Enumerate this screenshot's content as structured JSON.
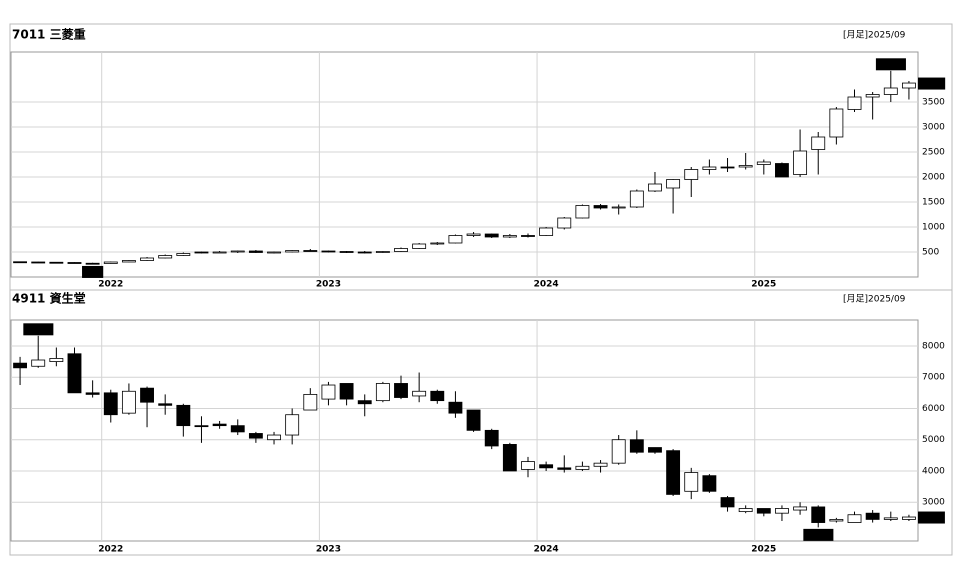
{
  "chart_data": [
    {
      "type": "candlestick",
      "title": "7011 三菱重",
      "period": "[月足]2025/09",
      "categories": [
        null,
        null,
        null,
        null,
        null,
        "2022",
        null,
        null,
        null,
        null,
        null,
        null,
        null,
        null,
        null,
        null,
        null,
        "2023",
        null,
        null,
        null,
        null,
        null,
        null,
        null,
        null,
        null,
        null,
        null,
        "2024",
        null,
        null,
        null,
        null,
        null,
        null,
        null,
        null,
        null,
        null,
        null,
        "2025",
        null,
        null,
        null,
        null,
        null,
        null,
        null,
        null
      ],
      "open": [
        305,
        300,
        295,
        290,
        275,
        270,
        300,
        330,
        380,
        430,
        500,
        490,
        500,
        520,
        490,
        500,
        530,
        520,
        510,
        500,
        490,
        510,
        570,
        660,
        680,
        830,
        860,
        800,
        830,
        830,
        980,
        1180,
        1430,
        1380,
        1400,
        1720,
        1780,
        1950,
        2150,
        2200,
        2200,
        2250,
        2270,
        2050,
        2550,
        2800,
        3350,
        3600,
        3650,
        3780
      ],
      "high": [
        310,
        305,
        300,
        295,
        285,
        310,
        340,
        400,
        450,
        490,
        510,
        520,
        530,
        540,
        510,
        540,
        560,
        530,
        520,
        520,
        520,
        590,
        680,
        700,
        850,
        900,
        870,
        860,
        870,
        1000,
        1200,
        1450,
        1460,
        1450,
        1750,
        2100,
        1960,
        2200,
        2350,
        2380,
        2480,
        2350,
        2290,
        2950,
        2900,
        3400,
        3750,
        3700,
        4124,
        3920
      ],
      "low": [
        295,
        290,
        285,
        270,
        251,
        265,
        295,
        320,
        370,
        420,
        470,
        480,
        480,
        480,
        470,
        490,
        510,
        490,
        480,
        470,
        480,
        500,
        560,
        640,
        670,
        800,
        780,
        780,
        790,
        820,
        950,
        1170,
        1350,
        1250,
        1380,
        1700,
        1270,
        1600,
        2050,
        2100,
        2150,
        2050,
        2000,
        2000,
        2050,
        2650,
        3300,
        3150,
        3500,
        3550
      ],
      "close": [
        300,
        295,
        290,
        275,
        270,
        300,
        330,
        380,
        430,
        470,
        490,
        500,
        520,
        490,
        500,
        530,
        520,
        510,
        500,
        490,
        510,
        570,
        660,
        680,
        830,
        860,
        800,
        830,
        810,
        980,
        1180,
        1430,
        1380,
        1400,
        1720,
        1860,
        1950,
        2150,
        2200,
        2180,
        2230,
        2300,
        2000,
        2520,
        2800,
        3360,
        3600,
        3650,
        3780,
        3879
      ],
      "ylim": [
        0,
        4500
      ],
      "yticks": [
        500,
        1000,
        1500,
        2000,
        2500,
        3000,
        3500
      ],
      "last": 3879,
      "annotations": [
        {
          "value": 4124,
          "label": "4,124"
        },
        {
          "value": 251
        }
      ],
      "up_color": "#ffffff",
      "down_color": "#000000",
      "grid": true
    },
    {
      "type": "candlestick",
      "title": "4911 資生堂",
      "period": "[月足]2025/09",
      "categories": [
        null,
        null,
        null,
        null,
        null,
        "2022",
        null,
        null,
        null,
        null,
        null,
        null,
        null,
        null,
        null,
        null,
        null,
        "2023",
        null,
        null,
        null,
        null,
        null,
        null,
        null,
        null,
        null,
        null,
        null,
        "2024",
        null,
        null,
        null,
        null,
        null,
        null,
        null,
        null,
        null,
        null,
        null,
        "2025",
        null,
        null,
        null,
        null,
        null,
        null,
        null,
        null
      ],
      "open": [
        7450,
        7350,
        7500,
        7750,
        6500,
        6500,
        5850,
        6650,
        6150,
        6100,
        5450,
        5500,
        5450,
        5200,
        5000,
        5150,
        5950,
        6300,
        6800,
        6250,
        6250,
        6800,
        6400,
        6550,
        6200,
        5950,
        5300,
        4850,
        4050,
        4200,
        4100,
        4050,
        4150,
        4250,
        5000,
        4750,
        4650,
        3350,
        3850,
        3150,
        2700,
        2800,
        2650,
        2750,
        2850,
        2400,
        2350,
        2650,
        2450,
        2450
      ],
      "high": [
        7650,
        8324,
        7950,
        7950,
        6900,
        6600,
        6800,
        6700,
        6450,
        6150,
        5750,
        5600,
        5650,
        5250,
        5250,
        6000,
        6650,
        6850,
        6800,
        6450,
        6850,
        7050,
        7150,
        6600,
        6550,
        5950,
        5350,
        4900,
        4450,
        4300,
        4500,
        4300,
        4350,
        5150,
        5300,
        4750,
        4700,
        4100,
        3900,
        3200,
        2900,
        2800,
        2900,
        3000,
        2900,
        2500,
        2700,
        2750,
        2700,
        2600
      ],
      "low": [
        6750,
        7300,
        7350,
        6500,
        6350,
        5550,
        5800,
        5400,
        5800,
        5100,
        4900,
        5350,
        5150,
        4900,
        4850,
        4850,
        5950,
        6100,
        6100,
        5750,
        6200,
        6300,
        6200,
        6150,
        5700,
        5250,
        4700,
        4000,
        3800,
        4000,
        3950,
        4000,
        3950,
        4200,
        4550,
        4550,
        3200,
        3100,
        3300,
        2700,
        2650,
        2550,
        2400,
        2600,
        2196,
        2350,
        2350,
        2350,
        2400,
        2400
      ],
      "close": [
        7300,
        7550,
        7600,
        6500,
        6450,
        5800,
        6550,
        6200,
        6100,
        5450,
        5420,
        5450,
        5250,
        5050,
        5150,
        5800,
        6450,
        6750,
        6300,
        6150,
        6800,
        6350,
        6550,
        6250,
        5850,
        5300,
        4800,
        4000,
        4300,
        4100,
        4050,
        4150,
        4250,
        5000,
        4600,
        4600,
        3250,
        3950,
        3350,
        2850,
        2800,
        2650,
        2800,
        2850,
        2350,
        2450,
        2600,
        2450,
        2500,
        2527
      ],
      "ylim": [
        1760,
        8830
      ],
      "yticks": [
        3000,
        4000,
        5000,
        6000,
        7000,
        8000
      ],
      "last": 2527,
      "annotations": [
        {
          "value": 8324,
          "label": "8,324"
        },
        {
          "value": 2196,
          "label": "2,196"
        }
      ],
      "up_color": "#ffffff",
      "down_color": "#000000",
      "grid": true
    }
  ]
}
